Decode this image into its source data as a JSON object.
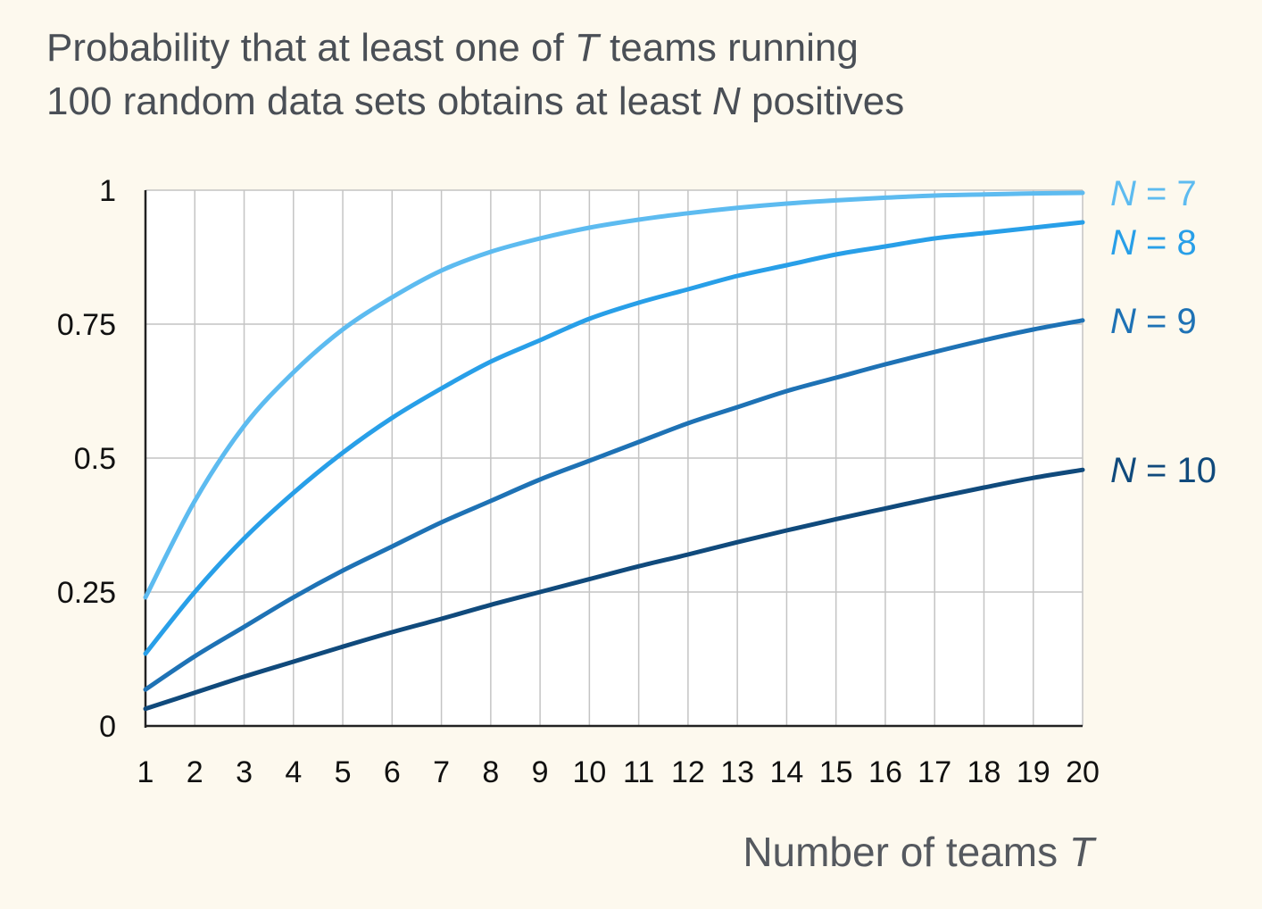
{
  "title": {
    "line1_pre": "Probability that at least one of ",
    "line1_var": "T",
    "line1_post": " teams running",
    "line2_pre": "100 random data sets obtains at least ",
    "line2_var": "N",
    "line2_post": " positives"
  },
  "chart_data": {
    "type": "line",
    "xlabel": "Number of teams",
    "xlabel_var": "T",
    "x": [
      1,
      2,
      3,
      4,
      5,
      6,
      7,
      8,
      9,
      10,
      11,
      12,
      13,
      14,
      15,
      16,
      17,
      18,
      19,
      20
    ],
    "xlim": [
      1,
      20
    ],
    "ylim": [
      0,
      1
    ],
    "yticks": [
      0,
      0.25,
      0.5,
      0.75,
      1
    ],
    "ytick_labels": [
      "0",
      "0.25",
      "0.5",
      "0.75",
      "1"
    ],
    "grid": true,
    "legend": "direct labels at right end of lines",
    "series": [
      {
        "name": "N = 7",
        "var": "N",
        "eq": " = 7",
        "color": "#5dbbf0",
        "values": [
          0.24,
          0.42,
          0.56,
          0.66,
          0.74,
          0.8,
          0.85,
          0.885,
          0.91,
          0.93,
          0.945,
          0.957,
          0.967,
          0.975,
          0.981,
          0.986,
          0.99,
          0.992,
          0.994,
          0.995
        ]
      },
      {
        "name": "N = 8",
        "var": "N",
        "eq": " = 8",
        "color": "#289fe8",
        "values": [
          0.135,
          0.25,
          0.35,
          0.435,
          0.51,
          0.575,
          0.63,
          0.68,
          0.72,
          0.76,
          0.79,
          0.815,
          0.84,
          0.86,
          0.88,
          0.895,
          0.91,
          0.92,
          0.93,
          0.94
        ]
      },
      {
        "name": "N = 9",
        "var": "N",
        "eq": " = 9",
        "color": "#1e72b5",
        "values": [
          0.068,
          0.13,
          0.185,
          0.24,
          0.29,
          0.335,
          0.38,
          0.42,
          0.46,
          0.495,
          0.53,
          0.565,
          0.595,
          0.625,
          0.65,
          0.675,
          0.698,
          0.72,
          0.74,
          0.757
        ]
      },
      {
        "name": "N = 10",
        "var": "N",
        "eq": " = 10",
        "color": "#104a7c",
        "values": [
          0.032,
          0.062,
          0.092,
          0.12,
          0.148,
          0.175,
          0.2,
          0.226,
          0.25,
          0.274,
          0.298,
          0.32,
          0.343,
          0.365,
          0.386,
          0.406,
          0.426,
          0.445,
          0.463,
          0.478
        ]
      }
    ]
  }
}
